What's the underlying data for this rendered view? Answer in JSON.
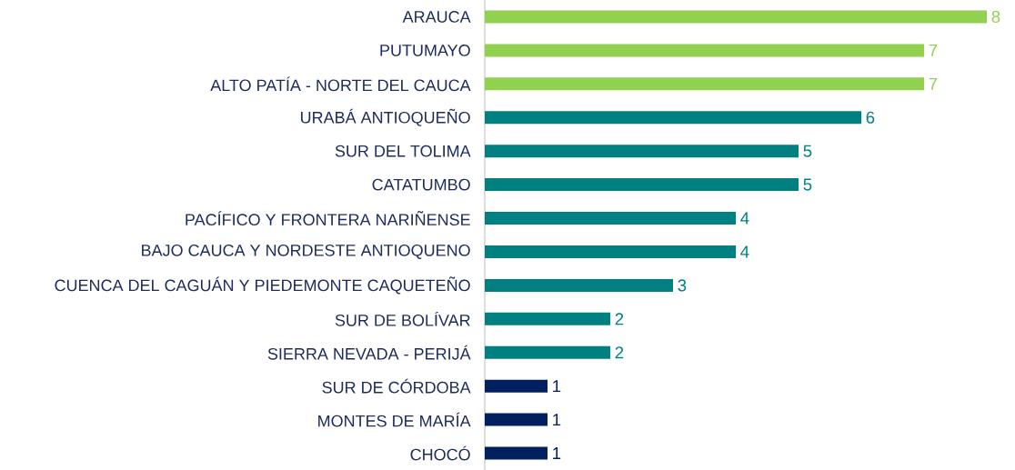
{
  "chart_data": {
    "type": "bar",
    "orientation": "horizontal",
    "data_labels": true,
    "categories": [
      "ARAUCA",
      "PUTUMAYO",
      "ALTO PATÍA - NORTE DEL CAUCA",
      "URABÁ ANTIOQUEÑO",
      "SUR DEL TOLIMA",
      "CATATUMBO",
      "PACÍFICO Y FRONTERA NARIÑENSE",
      "BAJO CAUCA Y NORDESTE ANTIOQUENO",
      "CUENCA DEL CAGUÁN Y PIEDEMONTE CAQUETEÑO",
      "SUR DE BOLÍVAR",
      "SIERRA NEVADA - PERIJÁ",
      "SUR DE CÓRDOBA",
      "MONTES DE MARÍA",
      "CHOCÓ"
    ],
    "values": [
      8,
      7,
      7,
      6,
      5,
      5,
      4,
      4,
      3,
      2,
      2,
      1,
      1,
      1
    ],
    "colors": [
      "#92d050",
      "#92d050",
      "#92d050",
      "#008080",
      "#008080",
      "#008080",
      "#008080",
      "#008080",
      "#008080",
      "#008080",
      "#008080",
      "#002060",
      "#002060",
      "#002060"
    ]
  }
}
